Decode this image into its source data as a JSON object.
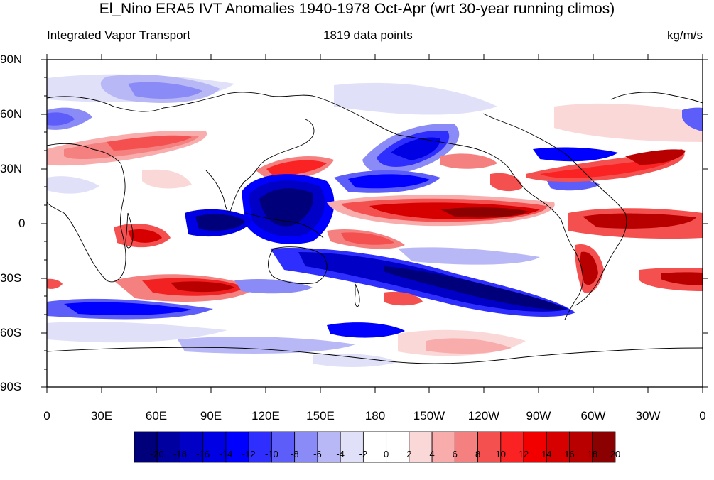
{
  "title": "El_Nino ERA5 IVT Anomalies 1940-1978 Oct-Apr (wrt 30-year running climos)",
  "left_subtitle": "Integrated Vapor Transport",
  "center_subtitle": "1819 data points",
  "right_subtitle": "kg/m/s",
  "lat_labels": [
    "90N",
    "60N",
    "30N",
    "0",
    "30S",
    "60S",
    "90S"
  ],
  "lon_labels": [
    "0",
    "30E",
    "60E",
    "90E",
    "120E",
    "150E",
    "180",
    "150W",
    "120W",
    "90W",
    "60W",
    "30W",
    "0"
  ],
  "colorbar": {
    "labels": [
      "-20",
      "-18",
      "-16",
      "-14",
      "-12",
      "-10",
      "-8",
      "-6",
      "-4",
      "-2",
      "0",
      "2",
      "4",
      "6",
      "8",
      "10",
      "12",
      "14",
      "16",
      "18",
      "20"
    ],
    "colors": [
      "#00007a",
      "#0000a0",
      "#0000c6",
      "#0000e5",
      "#0000ff",
      "#2e2eff",
      "#5d5dfa",
      "#8b8bf7",
      "#b8b8f7",
      "#e0e0f9",
      "#ffffff",
      "#ffffff",
      "#fbd8d8",
      "#f8acac",
      "#f58080",
      "#f55050",
      "#fa2222",
      "#f20000",
      "#d70000",
      "#b90000",
      "#8b0000"
    ]
  }
}
